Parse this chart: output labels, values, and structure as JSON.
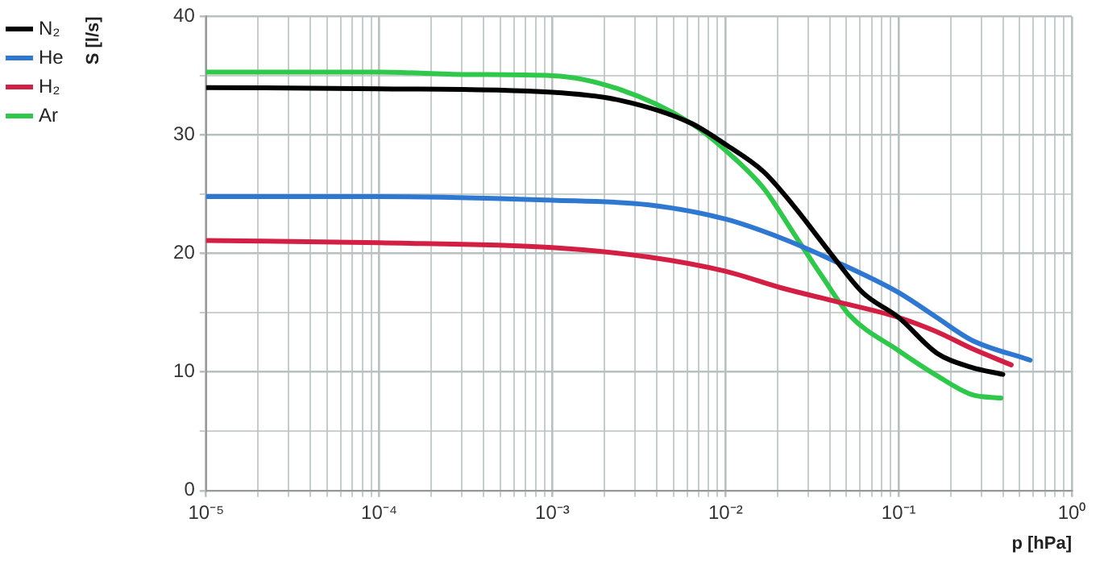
{
  "chart_data": {
    "type": "line",
    "xlabel": "p [hPa]",
    "ylabel": "S [l/s]",
    "log": "x",
    "grid": true,
    "legend": "top left",
    "marker": "none",
    "line_style": "solid",
    "xlim": [
      1e-05,
      1
    ],
    "ylim": [
      0,
      40
    ],
    "xticks": [
      {
        "value": 1e-05,
        "label": "10⁻⁵"
      },
      {
        "value": 2e-05,
        "label": null
      },
      {
        "value": 3e-05,
        "label": null
      },
      {
        "value": 4e-05,
        "label": null
      },
      {
        "value": 5e-05,
        "label": null
      },
      {
        "value": 6e-05,
        "label": null
      },
      {
        "value": 7e-05,
        "label": null
      },
      {
        "value": 8e-05,
        "label": null
      },
      {
        "value": 9e-05,
        "label": null
      },
      {
        "value": 0.0001,
        "label": "10⁻⁴"
      },
      {
        "value": 0.0002,
        "label": null
      },
      {
        "value": 0.0003,
        "label": null
      },
      {
        "value": 0.0004,
        "label": null
      },
      {
        "value": 0.0005,
        "label": null
      },
      {
        "value": 0.0006,
        "label": null
      },
      {
        "value": 0.0007,
        "label": null
      },
      {
        "value": 0.0008,
        "label": null
      },
      {
        "value": 0.0009,
        "label": null
      },
      {
        "value": 0.001,
        "label": "10⁻³"
      },
      {
        "value": 0.002,
        "label": null
      },
      {
        "value": 0.003,
        "label": null
      },
      {
        "value": 0.004,
        "label": null
      },
      {
        "value": 0.005,
        "label": null
      },
      {
        "value": 0.006,
        "label": null
      },
      {
        "value": 0.007,
        "label": null
      },
      {
        "value": 0.008,
        "label": null
      },
      {
        "value": 0.009,
        "label": null
      },
      {
        "value": 0.01,
        "label": "10⁻²"
      },
      {
        "value": 0.02,
        "label": null
      },
      {
        "value": 0.03,
        "label": null
      },
      {
        "value": 0.04,
        "label": null
      },
      {
        "value": 0.05,
        "label": null
      },
      {
        "value": 0.06,
        "label": null
      },
      {
        "value": 0.07,
        "label": null
      },
      {
        "value": 0.08,
        "label": null
      },
      {
        "value": 0.09,
        "label": null
      },
      {
        "value": 0.1,
        "label": "10⁻¹"
      },
      {
        "value": 0.2,
        "label": null
      },
      {
        "value": 0.3,
        "label": null
      },
      {
        "value": 0.4,
        "label": null
      },
      {
        "value": 0.5,
        "label": null
      },
      {
        "value": 0.6,
        "label": null
      },
      {
        "value": 0.7,
        "label": null
      },
      {
        "value": 0.8,
        "label": null
      },
      {
        "value": 0.9,
        "label": null
      },
      {
        "value": 1,
        "label": "10⁰"
      }
    ],
    "yticks": [
      0,
      {
        "value": 5,
        "label": null
      },
      10,
      {
        "value": 15,
        "label": null
      },
      20,
      {
        "value": 25,
        "label": null
      },
      30,
      {
        "value": 35,
        "label": null
      },
      40
    ],
    "series": [
      {
        "name": "N₂",
        "color": "#000000",
        "x": [
          1e-05,
          0.0001,
          0.001,
          0.0025,
          0.0063,
          0.01,
          0.0166,
          0.0245,
          0.041,
          0.062,
          0.1,
          0.166,
          0.263,
          0.4
        ],
        "values": [
          34,
          33.9,
          33.6,
          32.9,
          31,
          29.2,
          26.9,
          24.1,
          19.9,
          16.7,
          14.6,
          11.6,
          10.4,
          9.8
        ]
      },
      {
        "name": "He",
        "color": "#2f78d2",
        "x": [
          1e-05,
          0.0001,
          0.001,
          0.0036,
          0.01,
          0.021,
          0.042,
          0.1,
          0.166,
          0.263,
          0.575
        ],
        "values": [
          24.8,
          24.8,
          24.5,
          24.1,
          22.9,
          21.3,
          19.4,
          16.7,
          14.6,
          12.7,
          11
        ]
      },
      {
        "name": "H₂",
        "color": "#d41f45",
        "x": [
          1e-05,
          0.0001,
          0.001,
          0.0036,
          0.01,
          0.021,
          0.042,
          0.1,
          0.166,
          0.263,
          0.447
        ],
        "values": [
          21.1,
          20.9,
          20.5,
          19.7,
          18.5,
          17.1,
          16,
          14.6,
          13.4,
          12,
          10.6
        ]
      },
      {
        "name": "Ar",
        "color": "#2ec84a",
        "x": [
          1e-05,
          0.0001,
          0.000316,
          0.001,
          0.0025,
          0.0063,
          0.01,
          0.0166,
          0.0245,
          0.036,
          0.052,
          0.1,
          0.166,
          0.263,
          0.39
        ],
        "values": [
          35.3,
          35.3,
          35.1,
          35,
          33.8,
          31,
          28.7,
          25.5,
          21.8,
          18.1,
          14.8,
          11.8,
          9.7,
          8.1,
          7.8
        ]
      }
    ]
  }
}
